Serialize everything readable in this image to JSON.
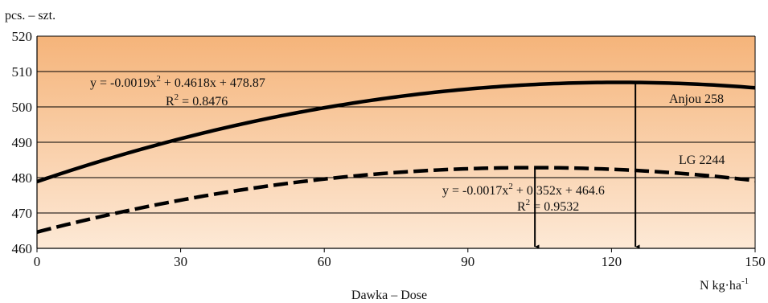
{
  "chart_data": {
    "type": "line",
    "ylabel": "pcs. – szt.",
    "xlabel": "Dawka – Dose",
    "xunit": {
      "base": "N kg·ha",
      "sup": "-1"
    },
    "xlim": [
      0,
      150
    ],
    "ylim": [
      460,
      520
    ],
    "xticks": [
      0,
      30,
      60,
      90,
      120,
      150
    ],
    "yticks": [
      460,
      470,
      480,
      490,
      500,
      510,
      520
    ],
    "grid": "horizontal",
    "background": {
      "top": "#f5b47a",
      "bottom": "#fde9d6"
    },
    "series": [
      {
        "name": "Anjou 258",
        "style": "solid",
        "coef": [
          -0.0019,
          0.4618,
          478.87
        ],
        "equation": {
          "pre": "y = -0.0019x",
          "sup": "2",
          "post": " + 0.4618x + 478.87"
        },
        "r2": {
          "pre": "R",
          "sup": "2",
          "post": " = 0.8476"
        },
        "optimum_x": 125
      },
      {
        "name": "LG 2244",
        "style": "dashed",
        "coef": [
          -0.0017,
          0.352,
          464.6
        ],
        "equation": {
          "pre": "y = -0.0017x",
          "sup": "2",
          "post": " + 0.352x + 464.6"
        },
        "r2": {
          "pre": "R",
          "sup": "2",
          "post": " = 0.9532"
        },
        "optimum_x": 104
      }
    ]
  }
}
